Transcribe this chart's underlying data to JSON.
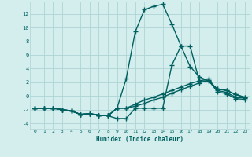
{
  "title": "",
  "xlabel": "Humidex (Indice chaleur)",
  "bg_color": "#d4eeee",
  "grid_color": "#aed4d4",
  "line_color": "#006060",
  "marker": "+",
  "markersize": 4,
  "linewidth": 1.0,
  "xlim": [
    -0.5,
    23.5
  ],
  "ylim": [
    -4.8,
    13.8
  ],
  "yticks": [
    -4,
    -2,
    0,
    2,
    4,
    6,
    8,
    10,
    12
  ],
  "xticks": [
    0,
    1,
    2,
    3,
    4,
    5,
    6,
    7,
    8,
    9,
    10,
    11,
    12,
    13,
    14,
    15,
    16,
    17,
    18,
    19,
    20,
    21,
    22,
    23
  ],
  "x": [
    0,
    1,
    2,
    3,
    4,
    5,
    6,
    7,
    8,
    9,
    10,
    11,
    12,
    13,
    14,
    15,
    16,
    17,
    18,
    19,
    20,
    21,
    22,
    23
  ],
  "line1": [
    -1.8,
    -1.8,
    -1.8,
    -2.0,
    -2.2,
    -2.7,
    -2.6,
    -2.8,
    -2.9,
    -3.3,
    -3.3,
    -1.8,
    -1.8,
    -1.8,
    -1.8,
    4.5,
    7.3,
    7.3,
    2.2,
    2.2,
    1.0,
    0.8,
    0.2,
    -0.2
  ],
  "line2": [
    -1.8,
    -1.8,
    -1.8,
    -2.0,
    -2.2,
    -2.7,
    -2.6,
    -2.8,
    -2.9,
    -1.8,
    2.5,
    9.4,
    12.6,
    13.1,
    13.4,
    10.5,
    7.3,
    4.3,
    2.8,
    2.2,
    1.0,
    0.8,
    0.2,
    -0.2
  ],
  "line3": [
    -1.8,
    -1.8,
    -1.8,
    -2.0,
    -2.2,
    -2.7,
    -2.6,
    -2.8,
    -2.9,
    -1.8,
    -1.8,
    -1.2,
    -0.6,
    -0.2,
    0.3,
    0.8,
    1.3,
    1.8,
    2.2,
    2.5,
    0.8,
    0.5,
    -0.2,
    -0.3
  ],
  "line4": [
    -1.8,
    -1.8,
    -1.8,
    -2.0,
    -2.2,
    -2.7,
    -2.6,
    -2.8,
    -2.9,
    -1.8,
    -1.8,
    -1.5,
    -1.1,
    -0.6,
    -0.2,
    0.4,
    0.9,
    1.4,
    1.9,
    2.3,
    0.6,
    0.3,
    -0.4,
    -0.5
  ]
}
